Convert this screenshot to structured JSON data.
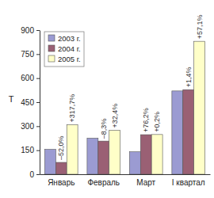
{
  "chart_data": {
    "type": "bar",
    "y_label": "Т",
    "categories": [
      "Январь",
      "Февраль",
      "Март",
      "I квартал"
    ],
    "series": [
      {
        "name": "2003 г.",
        "color": "#9b9bd2",
        "values": [
          155,
          225,
          140,
          520
        ]
      },
      {
        "name": "2004 г.",
        "color": "#9a6074",
        "values": [
          74,
          207,
          247,
          528
        ],
        "annotations": [
          "–52,0%",
          "–8,3%",
          "+76,2%",
          "+1,4%"
        ]
      },
      {
        "name": "2005 г.",
        "color": "#ffffc8",
        "values": [
          309,
          274,
          248,
          830
        ],
        "annotations": [
          "+317,7%",
          "+32,4%",
          "+0,2%",
          "+57,1%"
        ]
      }
    ],
    "ylim": [
      0,
      900
    ],
    "yticks": [
      0,
      150,
      300,
      450,
      600,
      750,
      900
    ],
    "grid": false,
    "legend": "upper left"
  }
}
